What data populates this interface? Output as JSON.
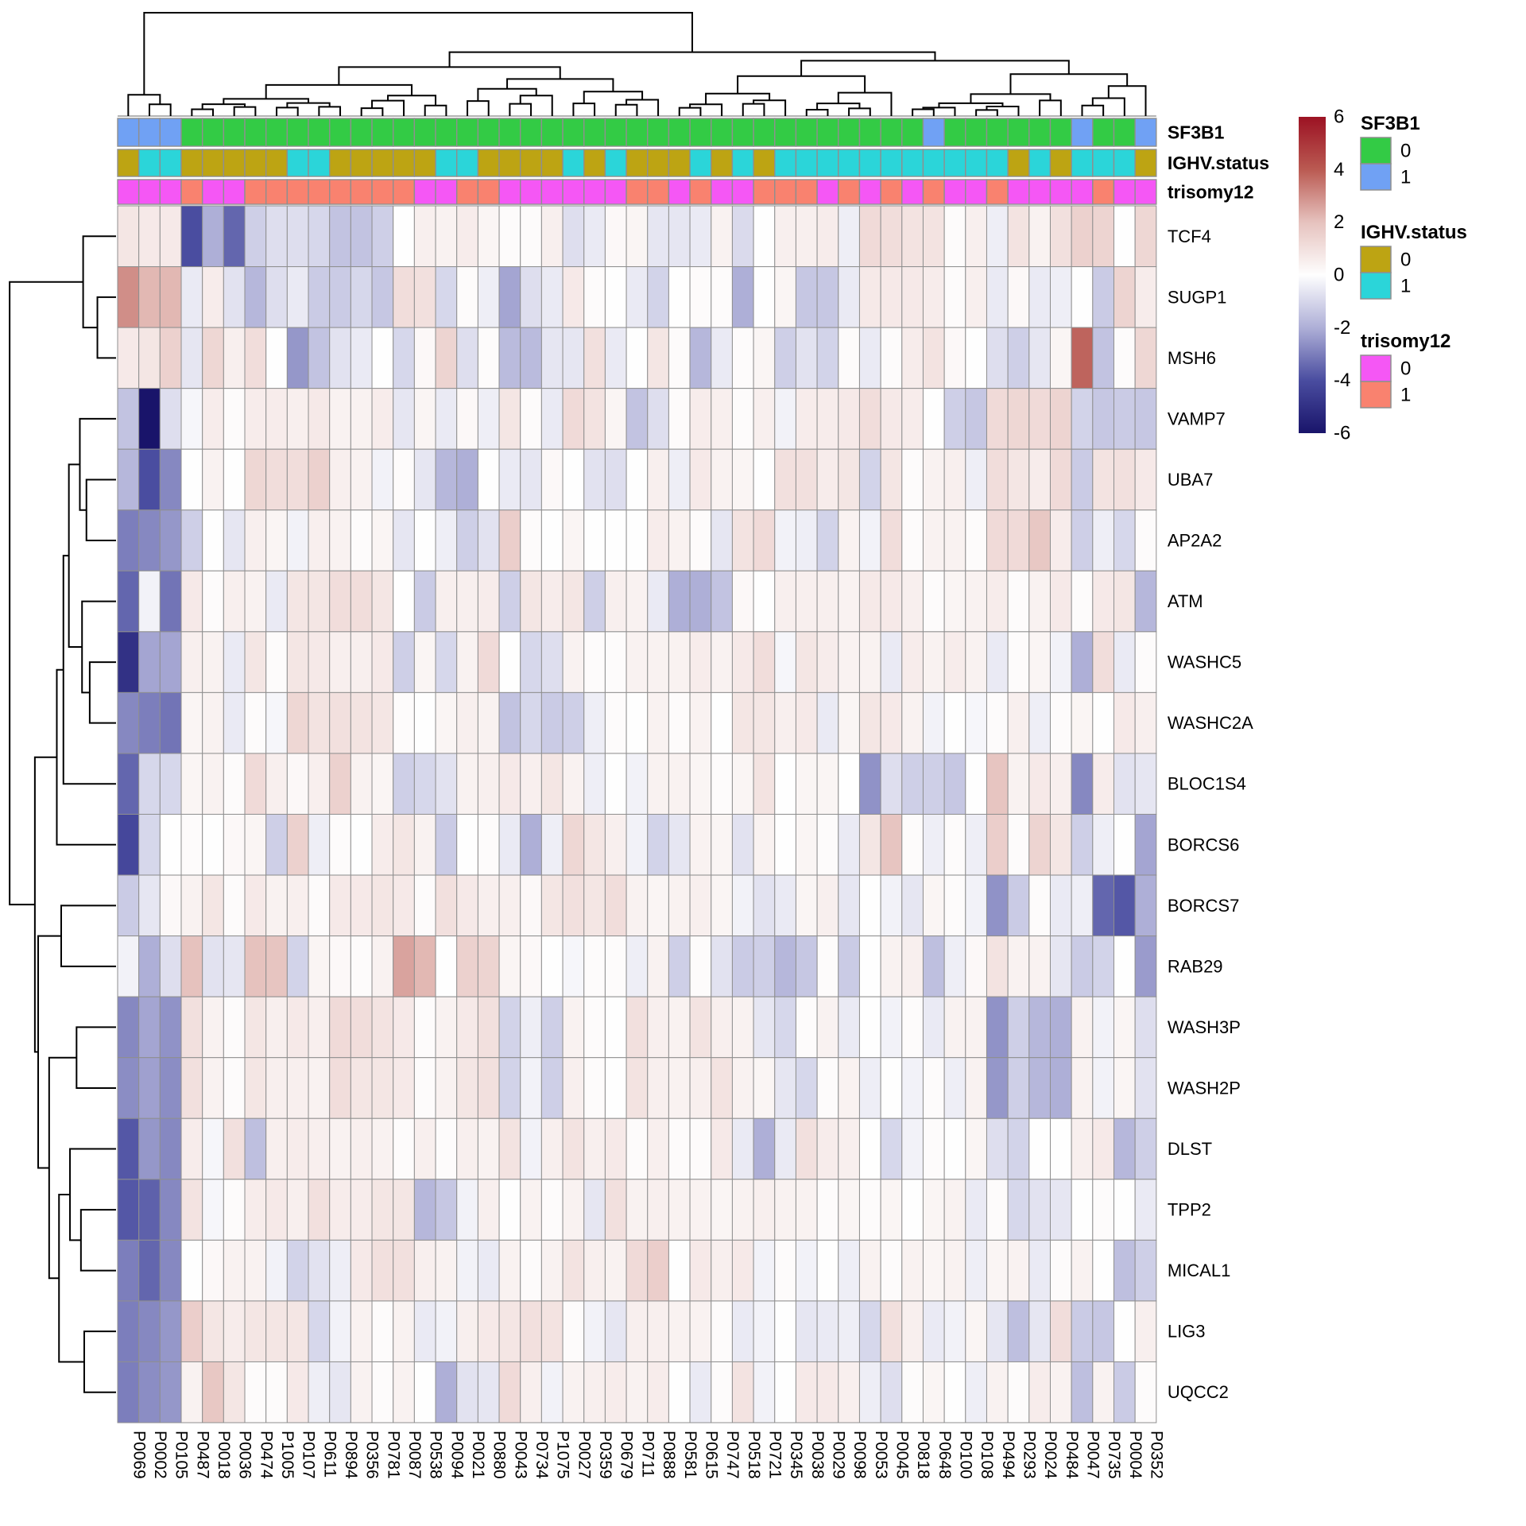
{
  "chart_data": {
    "type": "heatmap",
    "title": "",
    "value_range": [
      -6,
      6
    ],
    "colorbar_ticks": [
      "6",
      "4",
      "2",
      "0",
      "-2",
      "-4",
      "-6"
    ],
    "color_stops": [
      {
        "value": -6,
        "color": "#19146A"
      },
      {
        "value": -4,
        "color": "#4A4DA0"
      },
      {
        "value": -2,
        "color": "#AEAFD7"
      },
      {
        "value": 0,
        "color": "#FEFEFE"
      },
      {
        "value": 2,
        "color": "#E6C2BE"
      },
      {
        "value": 4,
        "color": "#BA5A52"
      },
      {
        "value": 6,
        "color": "#9C1223"
      }
    ],
    "rows": [
      "TCF4",
      "SUGP1",
      "MSH6",
      "VAMP7",
      "UBA7",
      "AP2A2",
      "ATM",
      "WASHC5",
      "WASHC2A",
      "BLOC1S4",
      "BORCS6",
      "BORCS7",
      "RAB29",
      "WASH3P",
      "WASH2P",
      "DLST",
      "TPP2",
      "MICAL1",
      "LIG3",
      "UQCC2"
    ],
    "columns": [
      "P0069",
      "P0002",
      "P0105",
      "P0487",
      "P0018",
      "P0036",
      "P0474",
      "P1005",
      "P0107",
      "P0611",
      "P0894",
      "P0356",
      "P0781",
      "P0087",
      "P0538",
      "P0094",
      "P0021",
      "P0880",
      "P0043",
      "P0734",
      "P1075",
      "P0027",
      "P0359",
      "P0679",
      "P0711",
      "P0888",
      "P0581",
      "P0615",
      "P0747",
      "P0518",
      "P0721",
      "P0345",
      "P0038",
      "P0029",
      "P0098",
      "P0053",
      "P0045",
      "P0818",
      "P0648",
      "P0100",
      "P0108",
      "P0494",
      "P0293",
      "P0024",
      "P0484",
      "P0047",
      "P0735",
      "P0004",
      "P0352"
    ],
    "values": [
      [
        0.8,
        0.7,
        0.7,
        -4,
        -2,
        -3.5,
        -1.2,
        -0.8,
        -0.8,
        -1,
        -1.5,
        -1.5,
        -1.2,
        0,
        0.5,
        0.4,
        0.6,
        0.3,
        0.1,
        0.1,
        0.5,
        -0.8,
        -0.5,
        0.2,
        0.3,
        -0.6,
        -0.6,
        -0.5,
        0.4,
        -0.9,
        0,
        0.5,
        0.5,
        0.6,
        -0.4,
        1.2,
        1.1,
        0.9,
        0.9,
        0.1,
        0.5,
        -0.4,
        0.9,
        0.4,
        1,
        1.5,
        1.4,
        0,
        1.3
      ],
      [
        3,
        2.2,
        2.2,
        -0.5,
        0.6,
        -0.7,
        -1.8,
        -0.8,
        -0.5,
        -1.3,
        -1.3,
        -1,
        -1.4,
        1.1,
        1,
        -1,
        0.1,
        -0.4,
        -2.2,
        -0.8,
        -0.5,
        0.7,
        0.1,
        0,
        -0.5,
        -1.1,
        0,
        0.1,
        0.1,
        -2,
        0,
        0.3,
        -1.4,
        -1.4,
        -0.5,
        0.7,
        0.7,
        0.7,
        0.6,
        0.1,
        0.5,
        -0.5,
        0.2,
        -0.5,
        -0.4,
        0,
        -1.3,
        1.4,
        0.6
      ],
      [
        0.7,
        0.8,
        1.5,
        -0.6,
        1.3,
        0.5,
        1.1,
        0,
        -2.5,
        -1.5,
        -0.7,
        -0.5,
        0,
        -1,
        0.2,
        1.4,
        -0.8,
        0.1,
        -1.7,
        -1.7,
        -0.6,
        -0.6,
        1,
        -0.5,
        0,
        0.8,
        0.1,
        -1.8,
        -0.5,
        0.1,
        0.3,
        -1.2,
        -0.7,
        -1.1,
        0.1,
        -0.5,
        0.1,
        0.6,
        0.9,
        0.2,
        0,
        -0.8,
        -1.2,
        -0.6,
        0.3,
        3.8,
        -1.5,
        0.1,
        1.3
      ],
      [
        -1.5,
        -6,
        -0.8,
        -0.2,
        0.6,
        0.1,
        0.6,
        0.6,
        0.5,
        0.7,
        0.4,
        0.4,
        0.6,
        -0.6,
        0.3,
        -0.5,
        0.2,
        -0.4,
        0.8,
        0.1,
        -0.5,
        1.2,
        0.9,
        0.3,
        -1.5,
        -0.8,
        0.1,
        0.6,
        0.5,
        0.1,
        0.5,
        -0.3,
        0.6,
        0.6,
        0.7,
        1.1,
        0.7,
        0.6,
        0,
        -1.2,
        -1.4,
        1.2,
        1.3,
        1.2,
        1.4,
        -1.1,
        -1.4,
        -1.3,
        -1.4
      ],
      [
        -1.8,
        -4,
        -2.8,
        0,
        0.4,
        0,
        1.3,
        1.1,
        1.1,
        1.5,
        0.5,
        0.4,
        -0.3,
        0.1,
        -0.6,
        -1.8,
        -2,
        0,
        -0.5,
        -0.6,
        0.2,
        0,
        -0.7,
        -0.8,
        0,
        0.5,
        -0.4,
        0.7,
        0.4,
        0.3,
        0,
        1,
        1,
        0.6,
        0.8,
        -1.1,
        0.8,
        0.1,
        0.4,
        0.5,
        -0.4,
        1.1,
        0.8,
        0.6,
        1.2,
        -1.3,
        0.9,
        1,
        0.7
      ],
      [
        -3,
        -2.8,
        -2.5,
        -1.2,
        0,
        -0.6,
        0.5,
        0.3,
        -0.3,
        0.5,
        0.4,
        0.1,
        0.3,
        -0.6,
        0,
        -0.4,
        -1.2,
        -0.7,
        1.6,
        0.1,
        0,
        0.3,
        0,
        0,
        0,
        0.6,
        0.4,
        0.1,
        -0.6,
        0.9,
        1.2,
        -0.3,
        -0.4,
        -1.1,
        0.4,
        -0.3,
        1.1,
        0.1,
        0.4,
        0.4,
        0.1,
        1.2,
        1.2,
        1.8,
        0.6,
        -1.2,
        -0.4,
        -1,
        0.1
      ],
      [
        -3.5,
        -0.3,
        -3.2,
        0.7,
        0.1,
        0.5,
        0.4,
        -0.5,
        0.8,
        0.8,
        1.1,
        1.1,
        0.8,
        0,
        -1.3,
        0.5,
        0.5,
        0.6,
        -1.2,
        0.8,
        0.6,
        0.8,
        -1.2,
        0.5,
        0.4,
        -0.5,
        -2,
        -2,
        -1.5,
        0.2,
        0,
        0.5,
        0.5,
        0.5,
        0.4,
        0.7,
        0.7,
        0.5,
        0.1,
        0.3,
        0.4,
        0.6,
        0.1,
        0.4,
        0.7,
        0.1,
        0.7,
        0.8,
        -1.8
      ],
      [
        -5,
        -2.2,
        -2.2,
        0.5,
        0.4,
        -0.5,
        0.8,
        0.1,
        0.8,
        0.7,
        0.5,
        0.5,
        0.7,
        -1.2,
        0.3,
        -1,
        0.4,
        1.2,
        0,
        -1,
        -0.8,
        0.4,
        0.1,
        0.1,
        0.4,
        0.4,
        0.4,
        0.6,
        0.4,
        0.7,
        1.1,
        -0.2,
        0.8,
        0.6,
        0.4,
        0.4,
        -0.5,
        0.6,
        0.4,
        0.6,
        0.4,
        -0.5,
        0.1,
        0.3,
        -0.3,
        -2,
        1.1,
        -0.5,
        0.1
      ],
      [
        -2.8,
        -3,
        -3.2,
        0.3,
        0.4,
        -0.5,
        0.1,
        -0.2,
        1.3,
        0.9,
        1,
        0.9,
        0.8,
        0.1,
        0,
        0.3,
        0.5,
        0.4,
        -1.5,
        -1,
        -1.3,
        -1.2,
        -0.4,
        0.1,
        0,
        0.4,
        0.1,
        0.4,
        0,
        0.8,
        0.8,
        0.5,
        0.7,
        -0.5,
        0.3,
        0.8,
        0.7,
        0.4,
        -0.3,
        0,
        -0.2,
        0.1,
        0.5,
        -0.4,
        0.1,
        0.3,
        0,
        0.7,
        0.5
      ],
      [
        -3.5,
        -1,
        -1,
        0.3,
        0.4,
        0.1,
        1.2,
        0.5,
        0.2,
        0.5,
        1.5,
        0.4,
        0.3,
        -1.2,
        -1,
        -0.7,
        0.4,
        0.5,
        0.7,
        0.5,
        0.8,
        0.4,
        -0.4,
        0,
        -0.3,
        0.4,
        0.4,
        0.3,
        0.1,
        0.3,
        0.9,
        0,
        0.3,
        0.3,
        0,
        -2.6,
        -0.8,
        -1.2,
        -1.2,
        -1.4,
        0,
        1.9,
        0.4,
        0.7,
        0.5,
        -2.8,
        0.6,
        -0.7,
        -0.6
      ],
      [
        -4.2,
        -1,
        0,
        0.1,
        0,
        0.2,
        0.3,
        -1.2,
        1.5,
        -0.4,
        0.1,
        0,
        0.6,
        0.8,
        0.4,
        -1.3,
        0,
        0.1,
        -0.5,
        -2,
        -0.4,
        1.3,
        0.8,
        0.5,
        -0.3,
        -1.1,
        -0.6,
        0.4,
        0.3,
        -0.7,
        0.4,
        0,
        0.3,
        0.1,
        -0.5,
        0.8,
        1.9,
        0.1,
        -0.4,
        0.1,
        -0.4,
        1.6,
        0.1,
        1.4,
        0.8,
        -1.2,
        -0.4,
        0,
        -2.2
      ],
      [
        -1.3,
        -0.6,
        0.2,
        0.4,
        0.8,
        0.1,
        0.7,
        0.4,
        0.5,
        0.1,
        0.7,
        0.7,
        0.8,
        0.7,
        0.1,
        1,
        0.7,
        0.5,
        0.5,
        0.2,
        0.8,
        1,
        0.8,
        1.1,
        0.4,
        0.3,
        0.4,
        0.5,
        0.3,
        -0.3,
        -0.7,
        -0.5,
        0.3,
        0.5,
        -0.6,
        0,
        -0.3,
        -0.6,
        0.3,
        0.1,
        -0.3,
        -2.6,
        -1.3,
        0.1,
        -0.5,
        -0.4,
        -3.5,
        -3.8,
        -2
      ],
      [
        -0.3,
        -2,
        -0.8,
        2,
        -0.7,
        -0.6,
        2,
        1.9,
        -1.1,
        0.3,
        0.2,
        0.1,
        0.4,
        2.6,
        2.2,
        0,
        1.5,
        1.4,
        0.3,
        0.2,
        0,
        -0.2,
        0.1,
        0.1,
        -0.4,
        0.4,
        -1.2,
        0.1,
        -0.7,
        -1.3,
        -1.2,
        -1.8,
        -1.4,
        0.1,
        -1.3,
        0,
        0.4,
        0.5,
        -1.6,
        -0.4,
        0.2,
        0.9,
        0.4,
        0.4,
        -0.6,
        -1.3,
        -1.1,
        0,
        -2.4
      ],
      [
        -2.8,
        -2.2,
        -2.6,
        1,
        0.4,
        0.1,
        0.8,
        0.5,
        0.7,
        0.5,
        1.2,
        1.1,
        0.9,
        0.7,
        0.1,
        0.4,
        0.7,
        1,
        -1.1,
        -0.4,
        -1.2,
        0.4,
        0.1,
        0,
        1,
        0.5,
        0.4,
        0.9,
        0.5,
        0.4,
        -0.6,
        -1,
        0.1,
        0.4,
        -0.5,
        0,
        -0.3,
        0.1,
        -0.5,
        0.4,
        0.4,
        -2.6,
        -1.2,
        -1.8,
        -2,
        0.4,
        -0.3,
        0.3,
        -0.8
      ],
      [
        -2.7,
        -2.3,
        -2.7,
        1,
        0.4,
        0.1,
        0.8,
        0.5,
        0.5,
        0.4,
        1.1,
        0.8,
        0.8,
        0.7,
        0.1,
        0.4,
        0.8,
        1,
        -1.1,
        -0.3,
        -1.2,
        0.5,
        0.1,
        0,
        0.9,
        0.5,
        0.4,
        0.5,
        0.9,
        0.4,
        0.3,
        -0.6,
        -1,
        0.1,
        0.4,
        -0.4,
        0,
        -0.3,
        0.1,
        -0.4,
        0.4,
        -2.5,
        -1.2,
        -1.8,
        -2,
        0.4,
        -0.3,
        0.3,
        -0.7
      ],
      [
        -3.8,
        -2.5,
        -2.8,
        0.6,
        -0.2,
        1,
        -1.6,
        0.5,
        0.6,
        0.5,
        0.4,
        0.5,
        0.4,
        0.1,
        0.5,
        0.1,
        0.5,
        0.4,
        0.9,
        -0.3,
        0.5,
        0.9,
        0.5,
        0.7,
        0.1,
        0.5,
        0.1,
        0.1,
        0.7,
        -0.5,
        -2,
        -0.5,
        1,
        0.6,
        0.5,
        0,
        -1,
        -0.3,
        0.1,
        0,
        0.3,
        -0.8,
        -1.1,
        0,
        0,
        0.5,
        0.7,
        -1.8,
        -1.2
      ],
      [
        -3.8,
        -3.6,
        -2.8,
        0.9,
        -0.2,
        0.1,
        0.6,
        0.7,
        0.5,
        1,
        0.6,
        0.6,
        0.8,
        0.8,
        -1.8,
        -1.4,
        -0.3,
        0.5,
        0,
        0.4,
        0.1,
        0.4,
        -0.6,
        1,
        0.4,
        0.5,
        0.4,
        0.4,
        0.3,
        0.4,
        0.5,
        0.4,
        0.4,
        0.1,
        0.3,
        0.1,
        0.3,
        0,
        0.3,
        0.4,
        -0.5,
        0.1,
        -1,
        -0.7,
        -0.6,
        0,
        0.1,
        0,
        -0.5
      ],
      [
        -3,
        -3.5,
        -2.8,
        0,
        0.2,
        0.4,
        0.4,
        -0.3,
        -1.1,
        -0.7,
        -0.4,
        0.7,
        1,
        1,
        0.5,
        0.4,
        -0.3,
        -0.5,
        0.4,
        0.1,
        0.4,
        0.9,
        0.5,
        0.4,
        1.2,
        1.6,
        0,
        0.7,
        0.5,
        0.7,
        -0.3,
        0.1,
        -0.3,
        0,
        -0.4,
        0.4,
        0.1,
        0.4,
        0.3,
        0.4,
        -0.4,
        0.3,
        0.4,
        -0.5,
        0.1,
        0.4,
        0,
        -1.6,
        -1.2
      ],
      [
        -3,
        -2.8,
        -2.5,
        1.6,
        0.8,
        0.6,
        0.8,
        0.8,
        0.8,
        -1,
        -0.3,
        0.4,
        0.1,
        0.4,
        -0.5,
        -0.3,
        0.5,
        0.7,
        0.8,
        1,
        0.9,
        0.1,
        -0.3,
        -0.6,
        0.5,
        0.5,
        0.4,
        0.4,
        0.1,
        -0.5,
        -0.3,
        0,
        -0.6,
        -0.5,
        -0.4,
        -1,
        1,
        0.5,
        -0.5,
        -0.3,
        0.3,
        -0.6,
        -1.6,
        -0.6,
        1.1,
        -1.3,
        -1.4,
        0,
        0.5
      ],
      [
        -3,
        -2.7,
        -2.5,
        0.4,
        1.8,
        0.8,
        0.1,
        0.1,
        0.7,
        -0.4,
        -0.6,
        0.4,
        0.1,
        0.4,
        0,
        -2,
        -0.7,
        -0.6,
        1.2,
        0.5,
        -0.3,
        0.4,
        0.5,
        0.6,
        0.4,
        0.6,
        0,
        -0.5,
        0.1,
        0.9,
        -0.3,
        0,
        0.7,
        0.7,
        0.5,
        -0.4,
        -0.8,
        0.1,
        0.3,
        0,
        -0.4,
        0.4,
        0.1,
        0.6,
        0.4,
        -1.6,
        0.4,
        -1.3,
        0.1
      ]
    ],
    "column_annotations": {
      "tracks": [
        "SF3B1",
        "IGHV.status",
        "trisomy12"
      ],
      "SF3B1": [
        1,
        1,
        1,
        0,
        0,
        0,
        0,
        0,
        0,
        0,
        0,
        0,
        0,
        0,
        0,
        0,
        0,
        0,
        0,
        0,
        0,
        0,
        0,
        0,
        0,
        0,
        0,
        0,
        0,
        0,
        0,
        0,
        0,
        0,
        0,
        0,
        0,
        0,
        1,
        0,
        0,
        0,
        0,
        0,
        0,
        1,
        0,
        0,
        1
      ],
      "IGHV.status": [
        0,
        1,
        1,
        0,
        0,
        0,
        0,
        0,
        1,
        1,
        0,
        0,
        0,
        0,
        0,
        1,
        1,
        0,
        0,
        0,
        0,
        1,
        0,
        1,
        0,
        0,
        0,
        1,
        0,
        1,
        0,
        1,
        1,
        1,
        1,
        1,
        1,
        1,
        1,
        1,
        1,
        1,
        0,
        1,
        0,
        1,
        1,
        1,
        0
      ],
      "trisomy12": [
        0,
        0,
        0,
        1,
        0,
        0,
        1,
        1,
        1,
        1,
        1,
        1,
        1,
        1,
        0,
        0,
        1,
        1,
        0,
        0,
        0,
        0,
        0,
        0,
        1,
        1,
        0,
        1,
        0,
        0,
        1,
        1,
        1,
        0,
        1,
        0,
        1,
        0,
        1,
        0,
        0,
        1,
        0,
        0,
        0,
        0,
        1,
        0,
        0
      ]
    },
    "annotation_colors": {
      "SF3B1": {
        "0": "#33CB45",
        "1": "#70A1F4"
      },
      "IGHV.status": {
        "0": "#BDA413",
        "1": "#2BD5D9"
      },
      "trisomy12": {
        "0": "#F557F5",
        "1": "#F9826F"
      }
    },
    "legend": [
      {
        "title": "SF3B1",
        "entries": [
          {
            "label": "0",
            "color": "#33CB45"
          },
          {
            "label": "1",
            "color": "#70A1F4"
          }
        ]
      },
      {
        "title": "IGHV.status",
        "entries": [
          {
            "label": "0",
            "color": "#BDA413"
          },
          {
            "label": "1",
            "color": "#2BD5D9"
          }
        ]
      },
      {
        "title": "trisomy12",
        "entries": [
          {
            "label": "0",
            "color": "#F557F5"
          },
          {
            "label": "1",
            "color": "#F9826F"
          }
        ]
      }
    ],
    "layout": {
      "grid_line_color": "#8F8F8F",
      "dendrogram_color": "#000000",
      "legend_position": "right"
    }
  }
}
